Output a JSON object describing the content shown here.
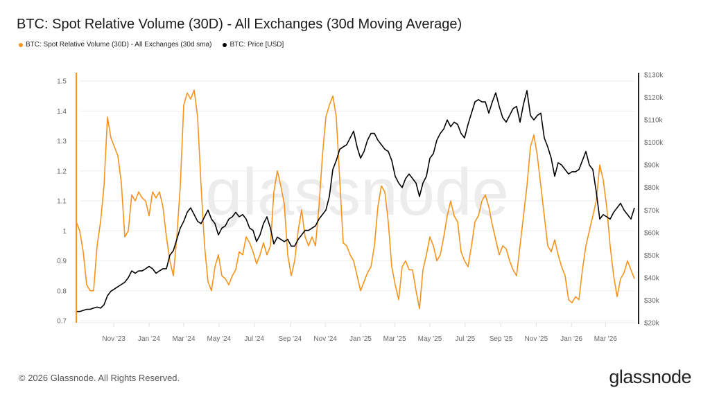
{
  "title": "BTC: Spot Relative Volume (30D) - All Exchanges (30d Moving Average)",
  "footer": "© 2026 Glassnode. All Rights Reserved.",
  "logo": "glassnode",
  "watermark": "glassnode",
  "chart_data": {
    "type": "line",
    "title": "BTC: Spot Relative Volume (30D) - All Exchanges (30d Moving Average)",
    "legend_position": "top-left",
    "grid": true,
    "colors": {
      "volume": "#f7931a",
      "price": "#000000",
      "grid": "#eeeeee"
    },
    "legend": [
      {
        "label": "BTC: Spot Relative Volume (30D) - All Exchanges (30d sma)",
        "color": "#f7931a"
      },
      {
        "label": "BTC: Price [USD]",
        "color": "#000000"
      }
    ],
    "left_axis": {
      "ylim": [
        0.7,
        1.5
      ],
      "ticks": [
        "1.5",
        "1.4",
        "1.3",
        "1.2",
        "1.1",
        "1",
        "0.9",
        "0.8",
        "0.7"
      ],
      "tick_values": [
        1.5,
        1.4,
        1.3,
        1.2,
        1.1,
        1.0,
        0.9,
        0.8,
        0.7
      ]
    },
    "right_axis": {
      "ylim": [
        20,
        130
      ],
      "unit": "k USD",
      "ticks": [
        "$130k",
        "$120k",
        "$110k",
        "$100k",
        "$90k",
        "$80k",
        "$70k",
        "$60k",
        "$50k",
        "$40k",
        "$30k",
        "$20k"
      ],
      "tick_values": [
        130,
        120,
        110,
        100,
        90,
        80,
        70,
        60,
        50,
        40,
        30,
        20
      ]
    },
    "x_axis": {
      "ticks": [
        "Nov '23",
        "Jan '24",
        "Mar '24",
        "May '24",
        "Jul '24",
        "Sep '24",
        "Nov '24",
        "Jan '25",
        "Mar '25",
        "May '25",
        "Jul '25",
        "Sep '25",
        "Nov '25",
        "Jan '26",
        "Mar '26"
      ],
      "tick_dates": [
        "2023-11-01",
        "2024-01-01",
        "2024-03-01",
        "2024-05-01",
        "2024-07-01",
        "2024-09-01",
        "2024-11-01",
        "2025-01-01",
        "2025-03-01",
        "2025-05-01",
        "2025-07-01",
        "2025-09-01",
        "2025-11-01",
        "2026-01-01",
        "2026-03-01"
      ]
    },
    "x": [
      "2023-08-28",
      "2023-09-03",
      "2023-09-09",
      "2023-09-15",
      "2023-09-21",
      "2023-09-27",
      "2023-10-03",
      "2023-10-09",
      "2023-10-15",
      "2023-10-21",
      "2023-10-27",
      "2023-11-02",
      "2023-11-08",
      "2023-11-14",
      "2023-11-20",
      "2023-11-26",
      "2023-12-02",
      "2023-12-08",
      "2023-12-14",
      "2023-12-20",
      "2023-12-26",
      "2024-01-01",
      "2024-01-07",
      "2024-01-13",
      "2024-01-19",
      "2024-01-25",
      "2024-01-31",
      "2024-02-06",
      "2024-02-12",
      "2024-02-18",
      "2024-02-24",
      "2024-03-01",
      "2024-03-07",
      "2024-03-13",
      "2024-03-19",
      "2024-03-25",
      "2024-03-31",
      "2024-04-06",
      "2024-04-12",
      "2024-04-18",
      "2024-04-24",
      "2024-04-30",
      "2024-05-06",
      "2024-05-12",
      "2024-05-18",
      "2024-05-24",
      "2024-05-30",
      "2024-06-05",
      "2024-06-11",
      "2024-06-17",
      "2024-06-23",
      "2024-06-29",
      "2024-07-05",
      "2024-07-11",
      "2024-07-17",
      "2024-07-23",
      "2024-07-29",
      "2024-08-04",
      "2024-08-10",
      "2024-08-16",
      "2024-08-22",
      "2024-08-28",
      "2024-09-03",
      "2024-09-09",
      "2024-09-15",
      "2024-09-21",
      "2024-09-27",
      "2024-10-03",
      "2024-10-09",
      "2024-10-15",
      "2024-10-21",
      "2024-10-27",
      "2024-11-02",
      "2024-11-08",
      "2024-11-14",
      "2024-11-20",
      "2024-11-26",
      "2024-12-02",
      "2024-12-08",
      "2024-12-14",
      "2024-12-20",
      "2024-12-26",
      "2025-01-01",
      "2025-01-07",
      "2025-01-13",
      "2025-01-19",
      "2025-01-25",
      "2025-01-31",
      "2025-02-06",
      "2025-02-12",
      "2025-02-18",
      "2025-02-24",
      "2025-03-02",
      "2025-03-08",
      "2025-03-14",
      "2025-03-20",
      "2025-03-26",
      "2025-04-01",
      "2025-04-07",
      "2025-04-13",
      "2025-04-19",
      "2025-04-25",
      "2025-05-01",
      "2025-05-07",
      "2025-05-13",
      "2025-05-19",
      "2025-05-25",
      "2025-05-31",
      "2025-06-06",
      "2025-06-12",
      "2025-06-18",
      "2025-06-24",
      "2025-06-30",
      "2025-07-06",
      "2025-07-12",
      "2025-07-18",
      "2025-07-24",
      "2025-07-30",
      "2025-08-05",
      "2025-08-11",
      "2025-08-17",
      "2025-08-23",
      "2025-08-29",
      "2025-09-04",
      "2025-09-10",
      "2025-09-16",
      "2025-09-22",
      "2025-09-28",
      "2025-10-04",
      "2025-10-10",
      "2025-10-16",
      "2025-10-22",
      "2025-10-28",
      "2025-11-03",
      "2025-11-09",
      "2025-11-15",
      "2025-11-21",
      "2025-11-27",
      "2025-12-03",
      "2025-12-09",
      "2025-12-15",
      "2025-12-21",
      "2025-12-27",
      "2026-01-02",
      "2026-01-08",
      "2026-01-14",
      "2026-01-20",
      "2026-01-26",
      "2026-02-01",
      "2026-02-07",
      "2026-02-13",
      "2026-02-19",
      "2026-02-25",
      "2026-03-03",
      "2026-03-09",
      "2026-03-15",
      "2026-03-21",
      "2026-03-27",
      "2026-04-02",
      "2026-04-08",
      "2026-04-14",
      "2026-04-20"
    ],
    "series": [
      {
        "name": "BTC: Spot Relative Volume (30D) - All Exchanges (30d sma)",
        "axis": "left",
        "values": [
          1.03,
          1.0,
          0.93,
          0.82,
          0.8,
          0.8,
          0.95,
          1.03,
          1.15,
          1.38,
          1.31,
          1.28,
          1.25,
          1.16,
          0.98,
          1.0,
          1.12,
          1.1,
          1.13,
          1.11,
          1.1,
          1.05,
          1.13,
          1.11,
          1.13,
          1.08,
          0.98,
          0.9,
          0.85,
          0.98,
          1.15,
          1.42,
          1.46,
          1.44,
          1.47,
          1.38,
          1.15,
          0.95,
          0.83,
          0.8,
          0.88,
          0.92,
          0.85,
          0.84,
          0.82,
          0.85,
          0.87,
          0.93,
          0.92,
          0.98,
          0.96,
          0.93,
          0.89,
          0.92,
          0.96,
          0.92,
          0.95,
          1.13,
          1.2,
          1.15,
          1.09,
          0.92,
          0.85,
          0.9,
          1.0,
          1.07,
          0.98,
          0.95,
          0.98,
          0.95,
          1.08,
          1.25,
          1.38,
          1.42,
          1.45,
          1.38,
          1.17,
          0.96,
          0.95,
          0.92,
          0.9,
          0.85,
          0.8,
          0.83,
          0.86,
          0.88,
          0.95,
          1.08,
          1.15,
          1.13,
          1.03,
          0.88,
          0.82,
          0.77,
          0.88,
          0.9,
          0.87,
          0.87,
          0.8,
          0.74,
          0.87,
          0.92,
          0.98,
          0.95,
          0.9,
          0.92,
          0.98,
          1.05,
          1.1,
          1.05,
          1.03,
          0.93,
          0.9,
          0.88,
          0.95,
          1.03,
          1.05,
          1.1,
          1.12,
          1.08,
          1.02,
          0.97,
          0.92,
          0.95,
          0.94,
          0.9,
          0.87,
          0.85,
          0.95,
          1.05,
          1.15,
          1.28,
          1.32,
          1.25,
          1.15,
          1.05,
          0.95,
          0.93,
          0.97,
          0.92,
          0.88,
          0.85,
          0.77,
          0.76,
          0.78,
          0.77,
          0.87,
          0.95,
          1.0,
          1.05,
          1.1,
          1.22,
          1.17,
          1.08,
          0.95,
          0.85,
          0.78,
          0.84,
          0.86,
          0.9,
          0.87,
          0.84
        ]
      },
      {
        "name": "BTC: Price [USD]",
        "axis": "right",
        "values": [
          25,
          25,
          25.5,
          26,
          26,
          26.5,
          27,
          26.5,
          28,
          32,
          34,
          35,
          36,
          37,
          38,
          40,
          43,
          42,
          43,
          43,
          44,
          45,
          44,
          42,
          43,
          44,
          44,
          50,
          52,
          57,
          62,
          65,
          69,
          71,
          68,
          65,
          64,
          67,
          70,
          66,
          64,
          59,
          62,
          63,
          66,
          67,
          69,
          67,
          68,
          66,
          62,
          61,
          56,
          59,
          64,
          67,
          62,
          55,
          58,
          57,
          56,
          57,
          54,
          54,
          57,
          59,
          61,
          61,
          62,
          63,
          66,
          68,
          70,
          76,
          88,
          92,
          97,
          98,
          99,
          102,
          105,
          98,
          93,
          96,
          101,
          104,
          104,
          101,
          99,
          97,
          96,
          92,
          85,
          82,
          80,
          84,
          86,
          84,
          82,
          76,
          82,
          85,
          93,
          95,
          101,
          104,
          106,
          110,
          107,
          109,
          108,
          104,
          102,
          108,
          113,
          118,
          119,
          118,
          118,
          113,
          118,
          122,
          116,
          111,
          109,
          112,
          115,
          116,
          109,
          117,
          123,
          112,
          110,
          112,
          113,
          102,
          98,
          93,
          85,
          91,
          90,
          88,
          86,
          87,
          87,
          88,
          92,
          96,
          90,
          88,
          78,
          66,
          68,
          67,
          66,
          69,
          71,
          73,
          70,
          68,
          66,
          71
        ]
      }
    ]
  }
}
